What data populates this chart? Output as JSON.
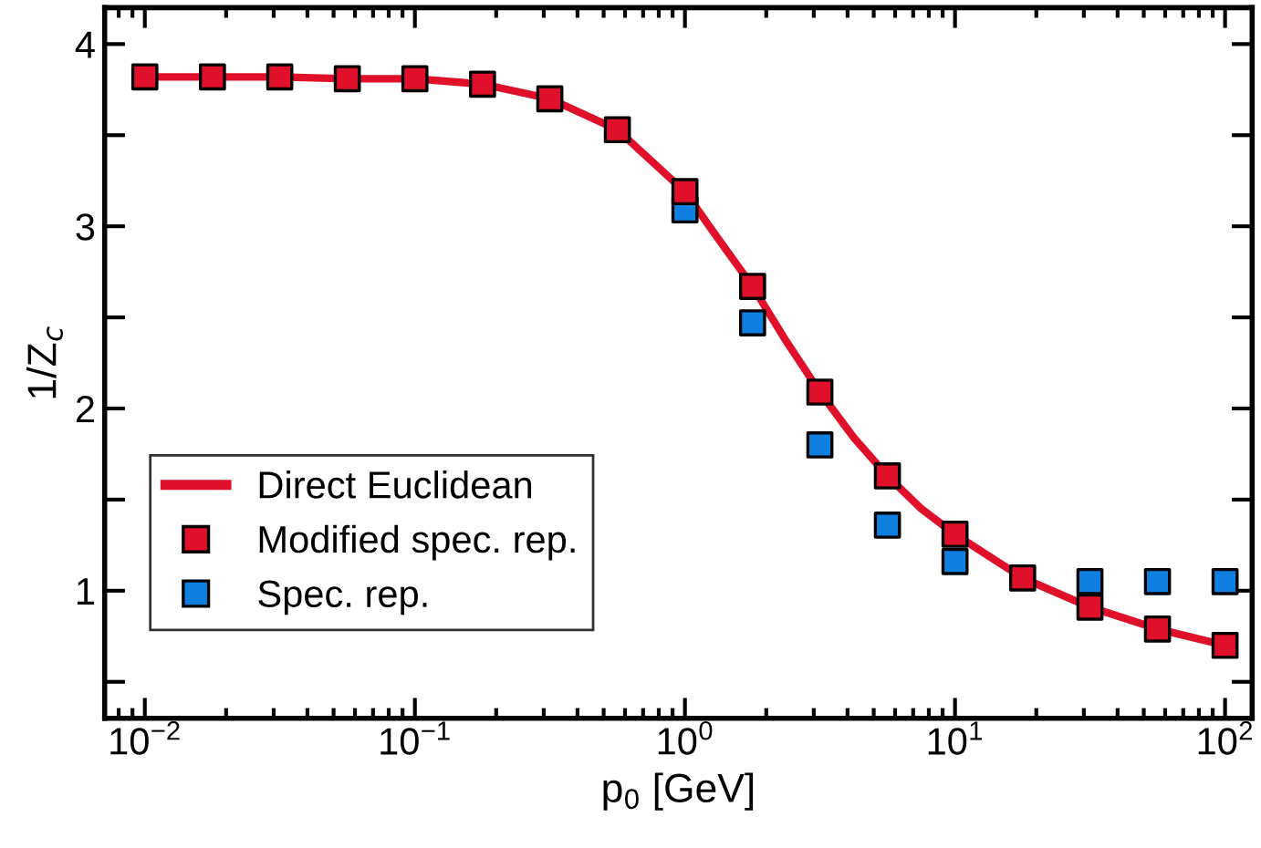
{
  "chart_data": {
    "type": "scatter",
    "xlabel": "p$_{0}$ [GeV]",
    "ylabel": "1/Z$_{c}$",
    "x": [
      0.01,
      0.0178,
      0.0316,
      0.0562,
      0.1,
      0.178,
      0.316,
      0.562,
      1,
      1.78,
      3.16,
      5.62,
      10,
      17.8,
      31.6,
      56.2,
      100
    ],
    "series": [
      {
        "type": "line",
        "name": "Direct Euclidean",
        "color": "#e0102a",
        "marker": "none",
        "line_style": "solid",
        "x": [
          0.01,
          0.0178,
          0.0316,
          0.0562,
          0.1,
          0.178,
          0.316,
          0.562,
          1,
          1.33,
          1.78,
          2.37,
          3.16,
          4.22,
          5.62,
          7.5,
          10,
          17.8,
          31.6,
          56.2,
          100
        ],
        "values": [
          3.82,
          3.82,
          3.82,
          3.81,
          3.81,
          3.78,
          3.7,
          3.53,
          3.19,
          2.93,
          2.67,
          2.37,
          2.09,
          1.84,
          1.63,
          1.45,
          1.31,
          1.07,
          0.91,
          0.79,
          0.7
        ]
      },
      {
        "name": "Modified spec. rep.",
        "color": "#e0102a",
        "marker": "square",
        "values": [
          3.82,
          3.82,
          3.82,
          3.81,
          3.81,
          3.78,
          3.7,
          3.53,
          3.19,
          2.67,
          2.09,
          1.63,
          1.31,
          1.07,
          0.91,
          0.79,
          0.7
        ]
      },
      {
        "name": "Spec. rep.",
        "color": "#1080e0",
        "marker": "square",
        "values": [
          null,
          null,
          null,
          null,
          null,
          null,
          null,
          null,
          3.09,
          2.47,
          1.8,
          1.36,
          1.16,
          null,
          1.05,
          1.05,
          1.05
        ]
      }
    ],
    "log": "x",
    "xlim": [
      0.0071,
      126
    ],
    "xticks": [
      {
        "value": 0.01,
        "label": "10$^{−2}$"
      },
      {
        "value": 0.1,
        "label": "10$^{−1}$"
      },
      {
        "value": 1,
        "label": "10$^{0}$"
      },
      {
        "value": 10,
        "label": "10$^{1}$"
      },
      {
        "value": 100,
        "label": "10$^{2}$"
      }
    ],
    "ylim": [
      0.3,
      4.2
    ],
    "yticks": [
      {
        "value": 0.5,
        "label": null
      },
      1,
      {
        "value": 1.5,
        "label": null
      },
      2,
      {
        "value": 2.5,
        "label": null
      },
      3,
      {
        "value": 3.5,
        "label": null
      },
      4
    ],
    "grid": false,
    "legend": "bottom left"
  }
}
